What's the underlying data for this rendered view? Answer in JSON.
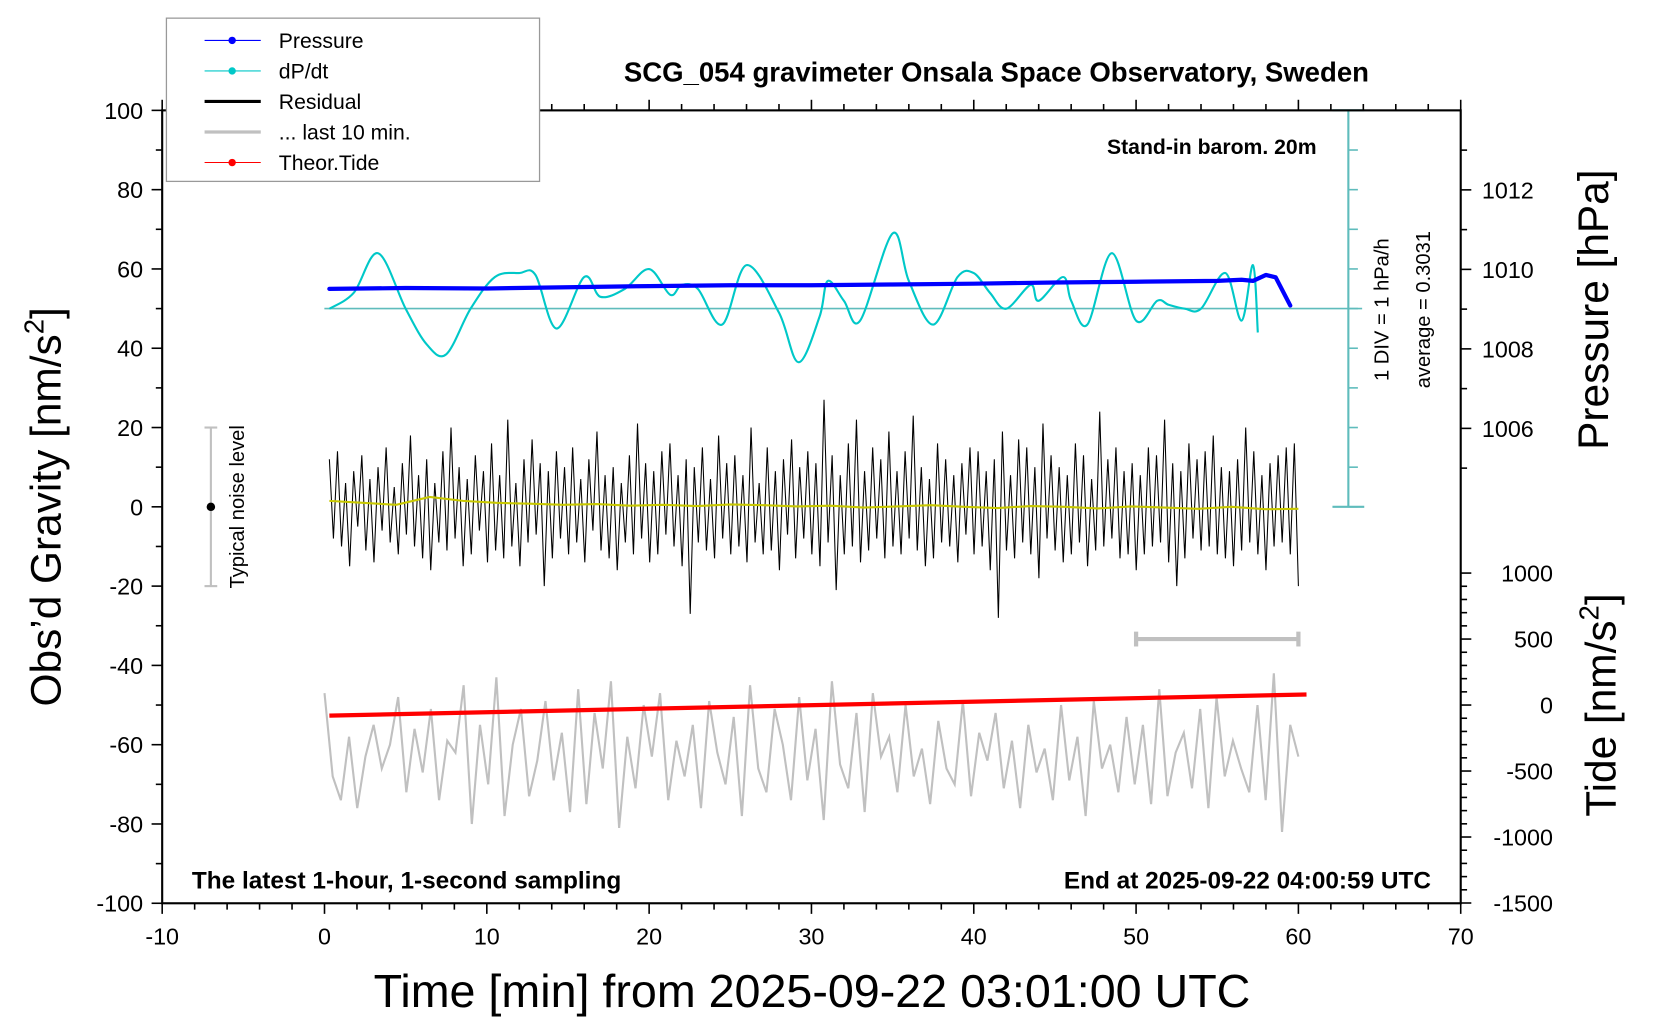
{
  "chart_data": {
    "type": "line",
    "title": "SCG_054 gravimeter Onsala Space Observatory, Sweden",
    "xlabel": "Time [min] from 2025-09-22 03:01:00 UTC",
    "ylabel_left": {
      "main": "Obs’d Gravity [nm/s",
      "sup": "2",
      "end": "]"
    },
    "ylabel_right_pressure": "Pressure [hPa]",
    "ylabel_right_tide": {
      "main": "Tide [nm/s",
      "sup": "2",
      "end": "]"
    },
    "xlim": [
      -10,
      70
    ],
    "ylim": [
      -100,
      100
    ],
    "pressure_lim_hint": [
      1012,
      1006
    ],
    "x_ticks": [
      "-10",
      "0",
      "10",
      "20",
      "30",
      "40",
      "50",
      "60",
      "70"
    ],
    "y_ticks": [
      "100",
      "80",
      "60",
      "40",
      "20",
      "0",
      "-20",
      "-40",
      "-60",
      "-80",
      "-100"
    ],
    "pressure_ticks": [
      "1012",
      "1010",
      "1008",
      "1006"
    ],
    "tide_ticks": [
      "1000",
      "500",
      "0",
      "-500",
      "-1000",
      "-1500"
    ],
    "annotations": {
      "stand_in": "Stand-in barom. 20m",
      "div": "1 DIV = 1 hPa/h",
      "average": "average = 0.3031",
      "noise": "Typical noise level",
      "latest": "The latest 1-hour, 1-second sampling",
      "end": "End at 2025-09-22 04:00:59 UTC"
    },
    "legend": {
      "position": "top-left",
      "entries": [
        {
          "label": "Pressure",
          "color": "#0000ff",
          "marker": true
        },
        {
          "label": "dP/dt",
          "color": "#00c8c8",
          "marker": true
        },
        {
          "label": "Residual",
          "color": "#000000",
          "marker": false
        },
        {
          "label": "... last 10 min.",
          "color": "#c0c0c0",
          "marker": false
        },
        {
          "label": "Theor.Tide",
          "color": "#ff0000",
          "marker": true
        }
      ]
    },
    "dpdt_average": 0.3031,
    "series": {
      "pressure_hPa": [
        [
          0.3,
          1009.51
        ],
        [
          5,
          1009.53
        ],
        [
          10,
          1009.52
        ],
        [
          15,
          1009.55
        ],
        [
          20,
          1009.58
        ],
        [
          25,
          1009.6
        ],
        [
          30,
          1009.6
        ],
        [
          35,
          1009.62
        ],
        [
          40,
          1009.64
        ],
        [
          45,
          1009.67
        ],
        [
          50,
          1009.69
        ],
        [
          55,
          1009.71
        ],
        [
          56.5,
          1009.74
        ],
        [
          57.2,
          1009.71
        ],
        [
          58,
          1009.86
        ],
        [
          58.6,
          1009.8
        ],
        [
          59.5,
          1009.09
        ]
      ],
      "dpdt_hPa_per_h": [
        [
          0.3,
          0.3
        ],
        [
          1.8,
          0.7
        ],
        [
          3.3,
          1.7
        ],
        [
          5,
          0.3
        ],
        [
          6.3,
          -0.6
        ],
        [
          7.5,
          -0.85
        ],
        [
          9,
          0.3
        ],
        [
          10.5,
          1.1
        ],
        [
          12,
          1.2
        ],
        [
          13,
          1.15
        ],
        [
          14.3,
          -0.2
        ],
        [
          16,
          1.1
        ],
        [
          17,
          0.6
        ],
        [
          18.5,
          0.8
        ],
        [
          20,
          1.3
        ],
        [
          21.3,
          0.65
        ],
        [
          22,
          0.9
        ],
        [
          23,
          0.8
        ],
        [
          24.5,
          -0.1
        ],
        [
          26,
          1.4
        ],
        [
          28,
          0.2
        ],
        [
          29.2,
          -1.05
        ],
        [
          30.5,
          0.1
        ],
        [
          31,
          1.0
        ],
        [
          32,
          0.5
        ],
        [
          33,
          0.0
        ],
        [
          35,
          2.2
        ],
        [
          36,
          1.0
        ],
        [
          37.5,
          -0.1
        ],
        [
          39,
          1.1
        ],
        [
          40,
          1.2
        ],
        [
          41,
          0.7
        ],
        [
          42,
          0.3
        ],
        [
          43.5,
          0.9
        ],
        [
          44,
          0.5
        ],
        [
          45.5,
          1.1
        ],
        [
          46,
          0.5
        ],
        [
          47,
          -0.1
        ],
        [
          48.5,
          1.7
        ],
        [
          50,
          0.0
        ],
        [
          51.3,
          0.5
        ],
        [
          52,
          0.4
        ],
        [
          53,
          0.3
        ],
        [
          54,
          0.3
        ],
        [
          55.5,
          1.2
        ],
        [
          56.5,
          0.0
        ],
        [
          57.2,
          1.4
        ],
        [
          57.5,
          -0.3
        ]
      ],
      "residual_nm_s2": [
        12,
        -8,
        14,
        -10,
        6,
        -15,
        9,
        -5,
        13,
        -11,
        7,
        -14,
        10,
        -6,
        15,
        -9,
        5,
        -12,
        11,
        -7,
        18,
        -10,
        8,
        -13,
        12,
        -16,
        6,
        -9,
        14,
        -11,
        20,
        -8,
        10,
        -15,
        7,
        -12,
        13,
        -6,
        9,
        -14,
        16,
        -11,
        8,
        -13,
        22,
        -10,
        6,
        -15,
        12,
        -9,
        17,
        -7,
        11,
        -20,
        9,
        -13,
        14,
        -8,
        10,
        -12,
        15,
        -9,
        7,
        -14,
        12,
        -6,
        19,
        -11,
        8,
        -13,
        10,
        -16,
        6,
        -9,
        13,
        -12,
        21,
        -8,
        11,
        -14,
        9,
        -12,
        14,
        -7,
        16,
        -10,
        8,
        -15,
        12,
        -27,
        10,
        -9,
        15,
        -11,
        7,
        -13,
        18,
        -8,
        11,
        -12,
        13,
        -10,
        8,
        -14,
        20,
        -9,
        6,
        -12,
        15,
        -11,
        9,
        -16,
        12,
        -7,
        17,
        -13,
        10,
        -8,
        14,
        -12,
        11,
        -15,
        27,
        -9,
        13,
        -21,
        8,
        -12,
        16,
        -10,
        22,
        -14,
        9,
        -11,
        15,
        -8,
        12,
        -13,
        19,
        -10,
        9,
        -12,
        14,
        -8,
        23,
        -11,
        10,
        -15,
        7,
        -13,
        16,
        -9,
        12,
        -10,
        8,
        -14,
        11,
        -7,
        15,
        -12,
        14,
        -10,
        9,
        -16,
        12,
        -28,
        19,
        -11,
        8,
        -13,
        17,
        -9,
        15,
        -12,
        10,
        -18,
        21,
        -8,
        13,
        -11,
        10,
        -14,
        8,
        -12,
        16,
        -9,
        13,
        -15,
        7,
        -11,
        24,
        -10,
        12,
        -8,
        15,
        -13,
        9,
        -12,
        11,
        -16,
        8,
        -12,
        15,
        -10,
        13,
        -9,
        22,
        -14,
        11,
        -20,
        9,
        -13,
        16,
        -8,
        12,
        -11,
        14,
        -10,
        18,
        -12,
        10,
        -13,
        9,
        -15,
        12,
        -11,
        20,
        -9,
        14,
        -12,
        8,
        -16,
        11,
        -10,
        13,
        -9,
        15,
        -12,
        16,
        -20
      ],
      "residual_smoothed_nm_s2": [
        1.5,
        1,
        0.5,
        2.5,
        1.5,
        1,
        0.8,
        0.5,
        0.7,
        0.3,
        0.5,
        0.2,
        0.6,
        0.4,
        0.1,
        0.3,
        -0.2,
        0.1,
        0.4,
        0,
        -0.3,
        0.2,
        0,
        -0.4,
        0.1,
        -0.2,
        -0.5,
        0,
        -0.6,
        -0.5
      ],
      "last_10_min_nm_s2": [
        -47,
        -68,
        -74,
        -58,
        -76,
        -63,
        -55,
        -66,
        -60,
        -48,
        -72,
        -56,
        -67,
        -51,
        -74,
        -59,
        -62,
        -45,
        -80,
        -55,
        -70,
        -43,
        -78,
        -60,
        -51,
        -73,
        -64,
        -49,
        -69,
        -57,
        -77,
        -46,
        -75,
        -52,
        -66,
        -44,
        -81,
        -58,
        -71,
        -50,
        -63,
        -47,
        -74,
        -59,
        -68,
        -55,
        -76,
        -49,
        -62,
        -70,
        -53,
        -78,
        -45,
        -66,
        -72,
        -51,
        -60,
        -74,
        -48,
        -69,
        -56,
        -79,
        -44,
        -65,
        -71,
        -52,
        -77,
        -47,
        -63,
        -58,
        -72,
        -50,
        -68,
        -61,
        -75,
        -54,
        -66,
        -70,
        -49,
        -73,
        -57,
        -64,
        -52,
        -71,
        -59,
        -76,
        -55,
        -67,
        -61,
        -74,
        -50,
        -69,
        -58,
        -78,
        -49,
        -66,
        -60,
        -72,
        -53,
        -70,
        -55,
        -75,
        -46,
        -73,
        -62,
        -57,
        -71,
        -51,
        -76,
        -48,
        -68,
        -59,
        -66,
        -72,
        -50,
        -74,
        -42,
        -82,
        -55,
        -63
      ],
      "theor_tide_nm_s2": [
        [
          0.3,
          -80
        ],
        [
          60.5,
          80
        ]
      ]
    },
    "noise_level_bar": {
      "x": -7,
      "range": [
        -20,
        20
      ]
    },
    "last_10_min_span": {
      "range_min": [
        50,
        60
      ],
      "tide_level": 500
    }
  }
}
